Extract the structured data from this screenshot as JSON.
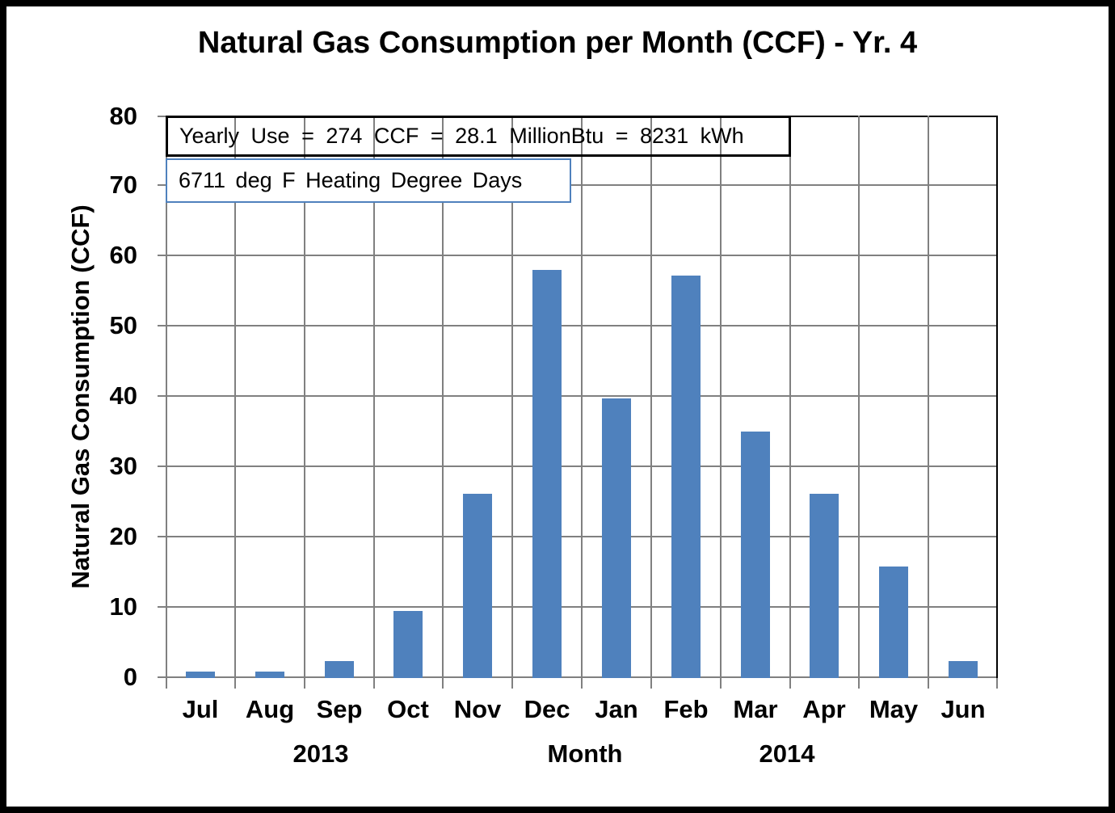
{
  "chart_data": {
    "type": "bar",
    "title": "Natural Gas Consumption per Month (CCF) - Yr. 4",
    "categories": [
      "Jul",
      "Aug",
      "Sep",
      "Oct",
      "Nov",
      "Dec",
      "Jan",
      "Feb",
      "Mar",
      "Apr",
      "May",
      "Jun"
    ],
    "values": [
      0.9,
      0.9,
      2.4,
      9.5,
      26.2,
      58,
      39.8,
      57.2,
      35,
      26.2,
      15.9,
      2.4
    ],
    "xlabel": "Month",
    "ylabel": "Natural Gas Consumption (CCF)",
    "ylim": [
      0,
      80
    ],
    "ytick_step": 10,
    "yticks": [
      0,
      10,
      20,
      30,
      40,
      50,
      60,
      70,
      80
    ],
    "x_group_labels": [
      {
        "text": "2013"
      },
      {
        "text": "2014"
      }
    ],
    "grid": true,
    "legend_position": "none",
    "bar_color": "#4F81BD",
    "gridline_color": "#808080",
    "plot_border_color": "#000000",
    "annotations": [
      {
        "text": "Yearly Use = 274 CCF = 28.1 MillionBtu = 8231 kWh",
        "border_color": "#000000",
        "background": "transparent"
      },
      {
        "text": "6711 deg F Heating Degree Days",
        "border_color": "#4F81BD",
        "background": "#FFFFFF"
      }
    ]
  }
}
